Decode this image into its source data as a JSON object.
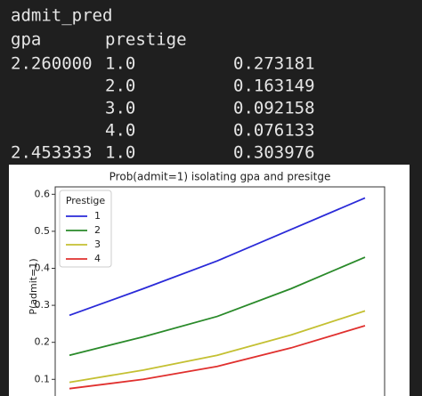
{
  "table": {
    "title": "admit_pred",
    "header": [
      "gpa",
      "prestige"
    ],
    "rows": [
      [
        "2.260000",
        "1.0",
        "0.273181"
      ],
      [
        null,
        "2.0",
        "0.163149"
      ],
      [
        null,
        "3.0",
        "0.092158"
      ],
      [
        null,
        "4.0",
        "0.076133"
      ],
      [
        "2.453333",
        "1.0",
        "0.303976"
      ]
    ]
  },
  "chart_data": {
    "type": "line",
    "title": "Prob(admit=1) isolating gpa and presitge",
    "y_label": "P(admit=1)",
    "legend_title": "Prestige",
    "legend": "upper left",
    "series": [
      {
        "name": "1",
        "color": "#2a2ad8",
        "values": [
          0.273,
          0.345,
          0.42,
          0.505,
          0.59
        ]
      },
      {
        "name": "2",
        "color": "#2a8a2a",
        "values": [
          0.165,
          0.215,
          0.27,
          0.345,
          0.43
        ]
      },
      {
        "name": "3",
        "color": "#c4c032",
        "values": [
          0.092,
          0.125,
          0.165,
          0.22,
          0.285
        ]
      },
      {
        "name": "4",
        "color": "#e0302e",
        "values": [
          0.075,
          0.1,
          0.135,
          0.185,
          0.245
        ]
      }
    ],
    "ylim": [
      0.055,
      0.62
    ],
    "yticks": [
      0.1,
      0.2,
      0.3,
      0.4,
      0.5,
      0.6
    ]
  }
}
